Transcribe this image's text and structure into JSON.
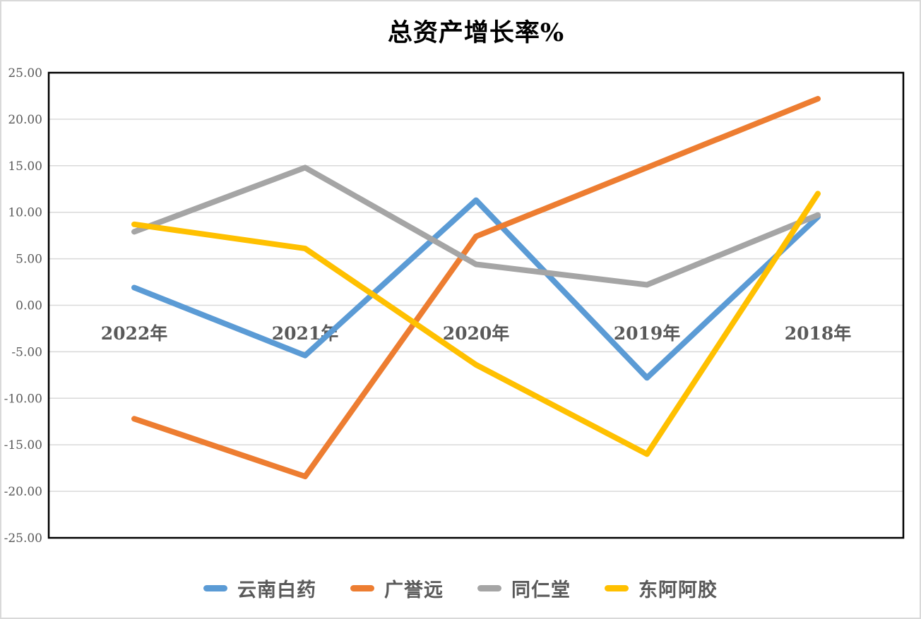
{
  "chart": {
    "background": "#ffffff",
    "outer_border_color": "#d9d9d9",
    "plot_border_color": "#000000",
    "grid_color": "#d9d9d9",
    "tick_label_color": "#595959",
    "category_label_color": "#595959",
    "title_color": "#000000"
  },
  "chart_data": {
    "type": "line",
    "title": "总资产增长率%",
    "categories": [
      "2022年",
      "2021年",
      "2020年",
      "2019年",
      "2018年"
    ],
    "series": [
      {
        "name": "云南白药",
        "color": "#5B9BD5",
        "values": [
          1.9,
          -5.4,
          11.3,
          -7.8,
          9.5
        ]
      },
      {
        "name": "广誉远",
        "color": "#ED7D31",
        "values": [
          -12.2,
          -18.4,
          7.4,
          14.8,
          22.2
        ]
      },
      {
        "name": "同仁堂",
        "color": "#A5A5A5",
        "values": [
          7.9,
          14.8,
          4.4,
          2.2,
          9.7
        ]
      },
      {
        "name": "东阿阿胶",
        "color": "#FFC000",
        "values": [
          8.7,
          6.1,
          -6.4,
          -16.0,
          12.0
        ]
      }
    ],
    "ylim": [
      -25,
      25
    ],
    "y_tick_step": 5,
    "y_ticks": [
      "25.00",
      "20.00",
      "15.00",
      "10.00",
      "5.00",
      "0.00",
      "-5.00",
      "-10.00",
      "-15.00",
      "-20.00",
      "-25.00"
    ],
    "grid": true,
    "legend_position": "bottom",
    "line_width": 8
  }
}
